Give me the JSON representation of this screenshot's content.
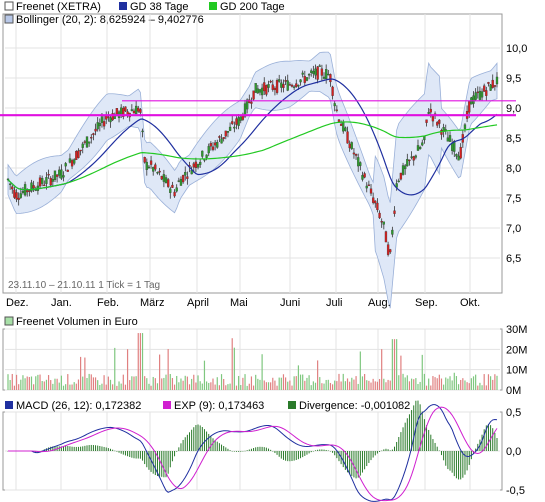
{
  "legend": {
    "price_series": "Freenet (XETRA)",
    "gd38": "GD 38 Tage",
    "gd200": "GD 200 Tage",
    "bollinger": "Bollinger (20, 2): 8,625924 – 9,402776"
  },
  "range_text": "23.11.10 – 21.10.11   1 Tick = 1 Tag",
  "volume_title": "Freenet Volumen in Euro",
  "macd_legend": {
    "macd": "MACD (26, 12): 0,172382",
    "exp": "EXP (9): 0,173463",
    "divergence": "Divergence: -0,001082"
  },
  "colors": {
    "candle_up": "#2e9a2e",
    "candle_down": "#d42020",
    "gd38": "#2030a0",
    "gd200": "#22c922",
    "bollinger_fill": "#dfe8f7",
    "bollinger_line": "#9ab0d8",
    "resistance": "#e010e0",
    "macd": "#2030a0",
    "exp": "#d020d0",
    "divergence": "#2a7a2a",
    "volume": "#e08080"
  },
  "chart_data": [
    {
      "type": "candlestick",
      "name": "price",
      "x_ticks": [
        "Dez.",
        "Jan.",
        "Feb.",
        "März",
        "April",
        "Mai",
        "Juni",
        "Juli",
        "Aug.",
        "Sep.",
        "Okt."
      ],
      "y_ticks": [
        "10,0",
        "9,5",
        "9,0",
        "8,5",
        "8,0",
        "7,5",
        "7,0",
        "6,5"
      ],
      "ylim": [
        6.0,
        10.3
      ],
      "close_path": [
        [
          "Dez.",
          7.55
        ],
        [
          "Jan.",
          7.9
        ],
        [
          "Feb.",
          8.85
        ],
        [
          "März",
          8.05
        ],
        [
          "April",
          8.1
        ],
        [
          "Mai",
          8.8
        ],
        [
          "Juni",
          9.4
        ],
        [
          "Juli",
          9.0
        ],
        [
          "Aug.",
          7.3
        ],
        [
          "Sep.",
          8.45
        ],
        [
          "Okt.",
          9.1
        ]
      ],
      "resistance_levels": [
        9.12,
        8.88
      ]
    },
    {
      "type": "bar",
      "name": "volume",
      "y_ticks": [
        "30M",
        "20M",
        "10M",
        "0M"
      ],
      "ylim": [
        0,
        30
      ]
    },
    {
      "type": "line",
      "name": "macd",
      "y_ticks": [
        "0,5",
        "0,0",
        "-0,5"
      ],
      "ylim": [
        -0.5,
        0.5
      ]
    }
  ]
}
